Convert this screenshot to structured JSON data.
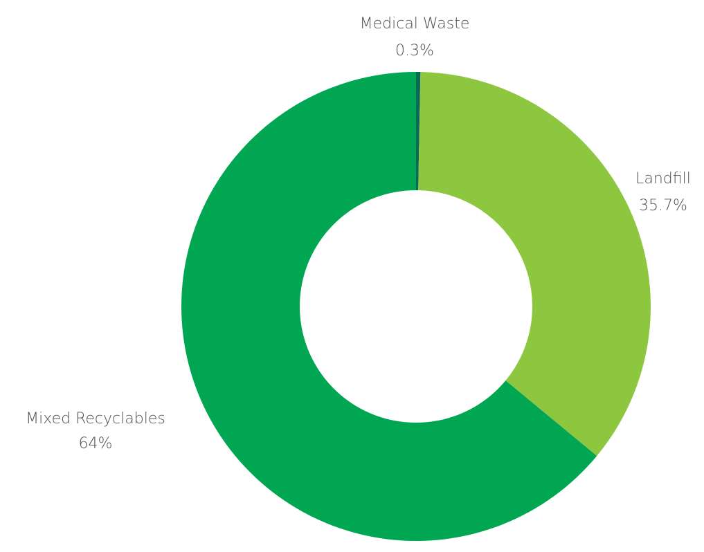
{
  "chart_data": {
    "type": "pie",
    "donut": true,
    "title": "",
    "slices": [
      {
        "label": "Medical Waste",
        "value": 0.3,
        "display": "0.3%",
        "color": "#0a6a5a"
      },
      {
        "label": "Landfill",
        "value": 35.7,
        "display": "35.7%",
        "color": "#8dc63f"
      },
      {
        "label": "Mixed Recyclables",
        "value": 64,
        "display": "64%",
        "color": "#00a651"
      }
    ],
    "legend": "none",
    "labels": "outside"
  }
}
